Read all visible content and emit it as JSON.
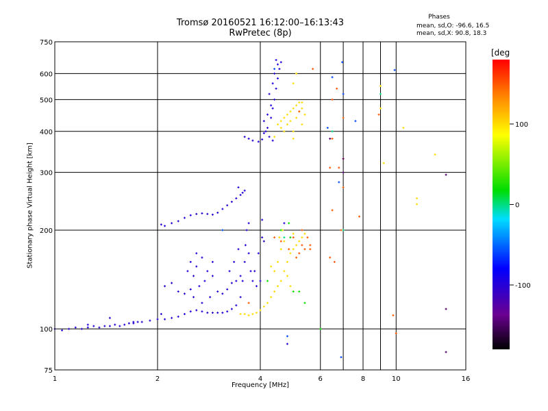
{
  "chart_data": {
    "type": "scatter",
    "title": "Tromsø 20160521 16:12:00–16:13:43",
    "subtitle": "RwPretec (8p)",
    "xlabel": "Frequency [MHz]",
    "ylabel": "Stationary phase Virtual Height [km]",
    "xscale": "log",
    "yscale": "log",
    "xlim": [
      1,
      16
    ],
    "ylim": [
      75,
      750
    ],
    "x_ticks": [
      1,
      2,
      4,
      6,
      8,
      10,
      16
    ],
    "x_minor_gridlines": [
      7,
      9
    ],
    "y_ticks": [
      75,
      100,
      200,
      300,
      400,
      500,
      600,
      750
    ],
    "grid": true,
    "phases_box": {
      "heading": "Phases",
      "line_o": "mean, sd,O: -96.6, 16.5",
      "line_x": "mean, sd,X:  90.8, 18.3"
    },
    "colorbar": {
      "label": "[deg",
      "range": [
        -180,
        180
      ],
      "ticks": [
        -100,
        0,
        100
      ]
    },
    "series": [
      {
        "phase": -100,
        "points": [
          [
            1.0,
            100
          ],
          [
            1.05,
            99
          ],
          [
            1.1,
            100
          ],
          [
            1.15,
            101
          ],
          [
            1.2,
            100
          ],
          [
            1.25,
            101
          ],
          [
            1.3,
            102
          ],
          [
            1.35,
            101
          ],
          [
            1.4,
            102
          ],
          [
            1.45,
            102
          ],
          [
            1.5,
            103
          ],
          [
            1.55,
            102
          ],
          [
            1.6,
            103
          ],
          [
            1.65,
            104
          ],
          [
            1.7,
            104
          ],
          [
            1.75,
            105
          ],
          [
            1.8,
            105
          ],
          [
            1.9,
            106
          ],
          [
            2.0,
            107
          ],
          [
            2.1,
            107
          ],
          [
            2.2,
            108
          ],
          [
            2.3,
            109
          ],
          [
            2.4,
            111
          ],
          [
            2.5,
            113
          ],
          [
            2.6,
            114
          ],
          [
            2.7,
            113
          ],
          [
            2.8,
            112
          ],
          [
            2.9,
            112
          ],
          [
            3.0,
            112
          ],
          [
            3.1,
            112
          ],
          [
            3.2,
            113
          ],
          [
            3.3,
            115
          ],
          [
            3.4,
            118
          ],
          [
            3.5,
            125
          ],
          [
            3.55,
            140
          ],
          [
            3.6,
            160
          ],
          [
            3.62,
            180
          ],
          [
            3.65,
            200
          ],
          [
            3.7,
            170
          ],
          [
            3.75,
            150
          ],
          [
            3.8,
            140
          ],
          [
            3.9,
            135
          ],
          [
            4.0,
            140
          ],
          [
            3.85,
            150
          ],
          [
            3.95,
            170
          ],
          [
            4.05,
            190
          ],
          [
            4.05,
            215
          ],
          [
            4.1,
            185
          ],
          [
            3.7,
            210
          ],
          [
            2.05,
            208
          ],
          [
            2.1,
            206
          ],
          [
            2.2,
            210
          ],
          [
            2.3,
            213
          ],
          [
            2.4,
            218
          ],
          [
            2.5,
            222
          ],
          [
            2.6,
            224
          ],
          [
            2.7,
            225
          ],
          [
            2.8,
            224
          ],
          [
            2.9,
            223
          ],
          [
            3.0,
            226
          ],
          [
            3.1,
            232
          ],
          [
            3.2,
            238
          ],
          [
            3.3,
            244
          ],
          [
            3.4,
            250
          ],
          [
            3.5,
            256
          ],
          [
            3.55,
            260
          ],
          [
            3.6,
            264
          ],
          [
            3.45,
            270
          ],
          [
            3.6,
            385
          ],
          [
            3.8,
            375
          ],
          [
            3.95,
            372
          ],
          [
            4.05,
            378
          ],
          [
            4.1,
            395
          ],
          [
            4.2,
            410
          ],
          [
            4.3,
            440
          ],
          [
            4.35,
            470
          ],
          [
            4.4,
            500
          ],
          [
            4.45,
            540
          ],
          [
            4.5,
            580
          ],
          [
            4.55,
            620
          ],
          [
            4.6,
            650
          ],
          [
            4.5,
            640
          ],
          [
            4.4,
            600
          ],
          [
            4.35,
            560
          ],
          [
            4.25,
            520
          ],
          [
            4.3,
            480
          ],
          [
            4.2,
            450
          ],
          [
            4.1,
            430
          ],
          [
            4.15,
            400
          ],
          [
            4.25,
            385
          ],
          [
            4.35,
            375
          ],
          [
            3.7,
            380
          ],
          [
            4.45,
            660
          ],
          [
            2.45,
            150
          ],
          [
            2.5,
            160
          ],
          [
            2.55,
            145
          ],
          [
            2.6,
            155
          ],
          [
            2.7,
            165
          ],
          [
            2.8,
            150
          ],
          [
            2.9,
            160
          ],
          [
            2.75,
            140
          ],
          [
            2.65,
            135
          ],
          [
            2.5,
            132
          ],
          [
            2.4,
            128
          ],
          [
            2.55,
            125
          ],
          [
            2.7,
            120
          ],
          [
            2.85,
            125
          ],
          [
            3.0,
            130
          ],
          [
            3.1,
            128
          ],
          [
            3.2,
            132
          ],
          [
            3.3,
            138
          ],
          [
            3.4,
            140
          ],
          [
            3.5,
            145
          ],
          [
            2.2,
            138
          ],
          [
            2.1,
            135
          ],
          [
            2.3,
            130
          ],
          [
            3.25,
            150
          ],
          [
            3.35,
            160
          ],
          [
            3.45,
            175
          ],
          [
            2.6,
            170
          ],
          [
            2.9,
            145
          ],
          [
            1.45,
            108
          ],
          [
            1.7,
            105
          ],
          [
            2.05,
            111
          ],
          [
            1.25,
            103
          ],
          [
            4.8,
            90
          ],
          [
            4.7,
            210
          ]
        ]
      },
      {
        "phase": 100,
        "points": [
          [
            3.5,
            111
          ],
          [
            3.6,
            111
          ],
          [
            3.7,
            110
          ],
          [
            3.8,
            111
          ],
          [
            3.9,
            112
          ],
          [
            4.0,
            114
          ],
          [
            4.1,
            117
          ],
          [
            4.2,
            120
          ],
          [
            4.3,
            125
          ],
          [
            4.4,
            130
          ],
          [
            4.5,
            135
          ],
          [
            4.6,
            140
          ],
          [
            4.7,
            150
          ],
          [
            4.8,
            160
          ],
          [
            4.9,
            170
          ],
          [
            5.0,
            175
          ],
          [
            5.1,
            180
          ],
          [
            5.2,
            185
          ],
          [
            5.3,
            190
          ],
          [
            5.4,
            195
          ],
          [
            4.6,
            175
          ],
          [
            4.55,
            190
          ],
          [
            4.65,
            200
          ],
          [
            4.5,
            160
          ],
          [
            4.4,
            150
          ],
          [
            4.7,
            185
          ],
          [
            5.0,
            195
          ],
          [
            4.8,
            145
          ],
          [
            4.9,
            135
          ],
          [
            4.3,
            155
          ],
          [
            4.5,
            420
          ],
          [
            4.6,
            430
          ],
          [
            4.7,
            440
          ],
          [
            4.8,
            450
          ],
          [
            4.9,
            460
          ],
          [
            5.0,
            470
          ],
          [
            5.1,
            480
          ],
          [
            5.2,
            490
          ],
          [
            5.3,
            470
          ],
          [
            5.4,
            450
          ],
          [
            4.6,
            410
          ],
          [
            4.8,
            420
          ],
          [
            4.9,
            430
          ],
          [
            5.0,
            400
          ],
          [
            5.1,
            440
          ],
          [
            5.2,
            460
          ],
          [
            5.3,
            490
          ],
          [
            5.0,
            560
          ],
          [
            5.1,
            600
          ],
          [
            4.7,
            400
          ],
          [
            9.0,
            550
          ],
          [
            9.0,
            470
          ],
          [
            9.2,
            320
          ],
          [
            10.5,
            410
          ],
          [
            11.5,
            250
          ],
          [
            11.5,
            240
          ],
          [
            13.0,
            340
          ],
          [
            5.3,
            420
          ],
          [
            5.0,
            380
          ],
          [
            4.4,
            385
          ]
        ]
      },
      {
        "phase": 150,
        "points": [
          [
            5.2,
            170
          ],
          [
            5.3,
            180
          ],
          [
            5.4,
            175
          ],
          [
            5.1,
            165
          ],
          [
            4.6,
            185
          ],
          [
            5.5,
            190
          ],
          [
            4.85,
            175
          ],
          [
            5.3,
            200
          ],
          [
            4.4,
            190
          ],
          [
            6.4,
            165
          ],
          [
            3.7,
            120
          ],
          [
            6.8,
            310
          ],
          [
            5.6,
            180
          ],
          [
            5.0,
            190
          ],
          [
            5.2,
            460
          ],
          [
            6.5,
            230
          ],
          [
            10.0,
            97
          ]
        ]
      },
      {
        "phase": 20,
        "points": [
          [
            4.6,
            200
          ],
          [
            5.0,
            130
          ],
          [
            4.2,
            140
          ],
          [
            5.2,
            130
          ],
          [
            4.85,
            210
          ],
          [
            6.0,
            100
          ],
          [
            5.4,
            120
          ],
          [
            4.9,
            190
          ]
        ]
      },
      {
        "phase": 150,
        "points": [
          [
            6.5,
            500
          ],
          [
            6.7,
            540
          ],
          [
            7.0,
            440
          ],
          [
            7.0,
            330
          ],
          [
            6.5,
            380
          ],
          [
            6.6,
            160
          ],
          [
            6.4,
            310
          ],
          [
            7.0,
            270
          ],
          [
            6.9,
            200
          ],
          [
            7.8,
            220
          ],
          [
            9.8,
            110
          ],
          [
            8.9,
            450
          ],
          [
            5.7,
            620
          ],
          [
            5.6,
            175
          ]
        ]
      },
      {
        "phase": -60,
        "points": [
          [
            6.5,
            585
          ],
          [
            6.95,
            650
          ],
          [
            9.9,
            615
          ],
          [
            7.0,
            520
          ],
          [
            7.6,
            430
          ],
          [
            6.8,
            280
          ],
          [
            6.9,
            82
          ],
          [
            4.8,
            95
          ],
          [
            4.4,
            620
          ],
          [
            3.1,
            200
          ],
          [
            6.3,
            410
          ]
        ]
      },
      {
        "phase": -150,
        "points": [
          [
            14.0,
            295
          ],
          [
            14.0,
            115
          ],
          [
            14.0,
            85
          ],
          [
            7.0,
            330
          ],
          [
            7.0,
            300
          ],
          [
            6.4,
            380
          ]
        ]
      },
      {
        "phase": 0,
        "points": [
          [
            6.5,
            400
          ],
          [
            9.0,
            520
          ],
          [
            4.7,
            190
          ],
          [
            7.0,
            200
          ]
        ]
      }
    ]
  }
}
